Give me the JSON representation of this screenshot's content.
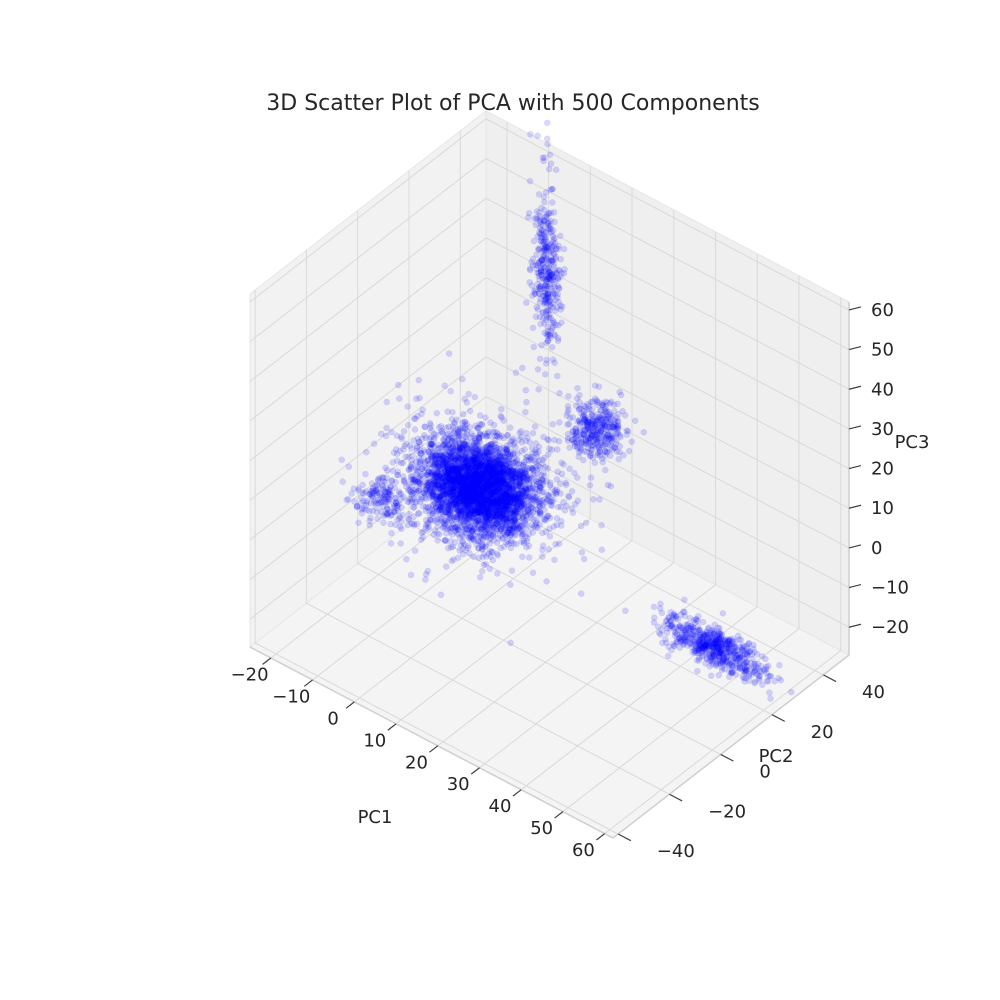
{
  "chart_data": {
    "type": "scatter",
    "projection": "3d",
    "title": "3D Scatter Plot of PCA with 500 Components",
    "xlabel": "PC1",
    "ylabel": "PC2",
    "zlabel": "PC3",
    "xlim": [
      -25,
      62
    ],
    "ylim": [
      -42,
      50
    ],
    "zlim": [
      -27,
      62
    ],
    "x_ticks": [
      -20,
      -10,
      0,
      10,
      20,
      30,
      40,
      50,
      60
    ],
    "y_ticks": [
      -40,
      -20,
      0,
      20,
      40
    ],
    "z_ticks": [
      -20,
      -10,
      0,
      10,
      20,
      30,
      40,
      50,
      60
    ],
    "x_tick_labels": [
      "−20",
      "−10",
      "0",
      "10",
      "20",
      "30",
      "40",
      "50",
      "60"
    ],
    "y_tick_labels": [
      "−40",
      "−20",
      "0",
      "20",
      "40"
    ],
    "z_tick_labels": [
      "−20",
      "−10",
      "0",
      "10",
      "20",
      "30",
      "40",
      "50",
      "60"
    ],
    "grid": true,
    "marker_color": "#0000ff",
    "marker_alpha": 0.15,
    "pane_color": "#f2f2f2",
    "grid_color": "#d9d9d9",
    "clusters": [
      {
        "center": [
          -2,
          10,
          0
        ],
        "spread": [
          6,
          6,
          4
        ],
        "approx_points": 4000
      },
      {
        "center": [
          -3,
          38,
          40
        ],
        "spread": [
          1.5,
          1.5,
          10
        ],
        "approx_points": 350
      },
      {
        "center": [
          15,
          28,
          15
        ],
        "spread": [
          3,
          3,
          3
        ],
        "approx_points": 350
      },
      {
        "center": [
          -18,
          -2,
          -6
        ],
        "spread": [
          3,
          3,
          2
        ],
        "approx_points": 150
      },
      {
        "center": [
          42,
          30,
          -26
        ],
        "spread": [
          6,
          2,
          2
        ],
        "approx_points": 600
      }
    ]
  }
}
